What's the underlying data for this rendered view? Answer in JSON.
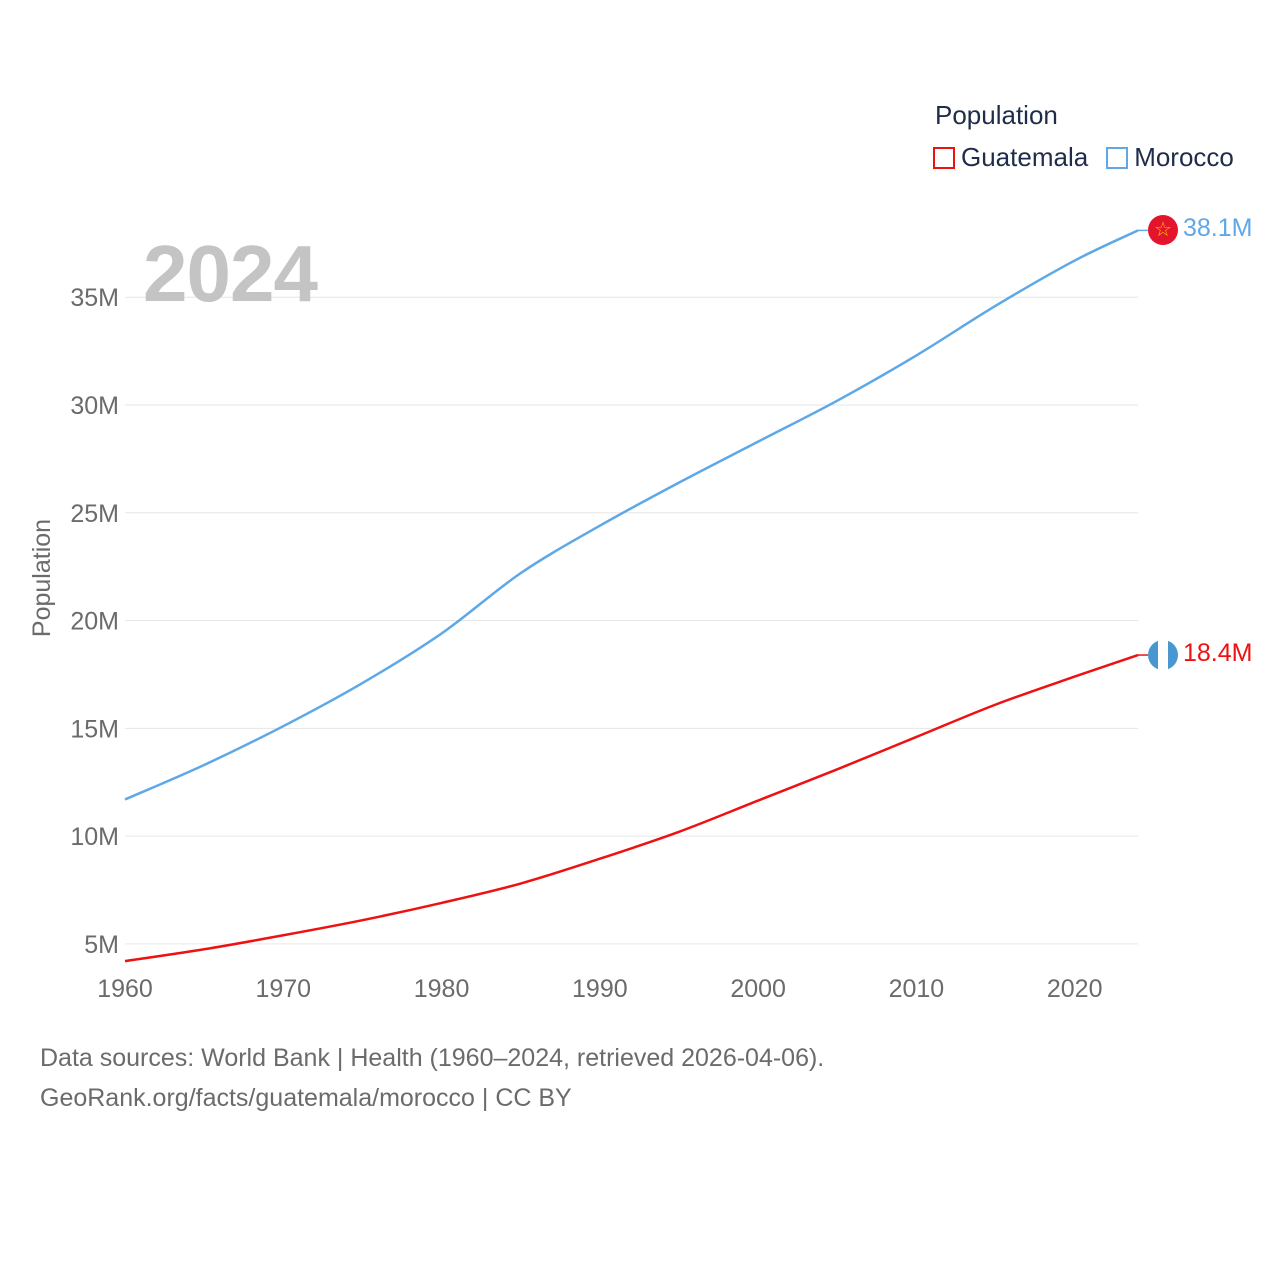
{
  "legend": {
    "title": "Population",
    "items": [
      {
        "name": "Guatemala",
        "color": "#ee1111"
      },
      {
        "name": "Morocco",
        "color": "#5ea8e8"
      }
    ]
  },
  "current_year": "2024",
  "end_labels": {
    "morocco": "38.1M",
    "guatemala": "18.4M"
  },
  "flags": {
    "morocco": "morocco-flag-icon",
    "guatemala": "guatemala-flag-icon"
  },
  "footer": {
    "line1": "Data sources: World Bank | Health (1960–2024, retrieved 2026-04-06).",
    "line2": "GeoRank.org/facts/guatemala/morocco | CC BY"
  },
  "chart_data": {
    "type": "line",
    "title": "",
    "xlabel": "",
    "ylabel": "Population",
    "xlim": [
      1960,
      2024
    ],
    "ylim": [
      3000000,
      39000000
    ],
    "x_ticks": [
      1960,
      1970,
      1980,
      1990,
      2000,
      2010,
      2020
    ],
    "x_tick_labels": [
      "1960",
      "1970",
      "1980",
      "1990",
      "2000",
      "2010",
      "2020"
    ],
    "y_ticks": [
      5000000,
      10000000,
      15000000,
      20000000,
      25000000,
      30000000,
      35000000
    ],
    "y_tick_labels": [
      "5M",
      "10M",
      "15M",
      "20M",
      "25M",
      "30M",
      "35M"
    ],
    "grid": true,
    "legend_position": "top-right",
    "series": [
      {
        "name": "Morocco",
        "color": "#5ea8e8",
        "x": [
          1960,
          1965,
          1970,
          1975,
          1980,
          1985,
          1990,
          1995,
          2000,
          2005,
          2010,
          2015,
          2020,
          2024
        ],
        "y": [
          11700000,
          13300000,
          15100000,
          17100000,
          19400000,
          22200000,
          24400000,
          26400000,
          28300000,
          30200000,
          32300000,
          34600000,
          36700000,
          38100000
        ]
      },
      {
        "name": "Guatemala",
        "color": "#ee1111",
        "x": [
          1960,
          1965,
          1970,
          1975,
          1980,
          1985,
          1990,
          1995,
          2000,
          2005,
          2010,
          2015,
          2020,
          2024
        ],
        "y": [
          4200000,
          4750000,
          5400000,
          6100000,
          6900000,
          7800000,
          8950000,
          10200000,
          11650000,
          13100000,
          14600000,
          16100000,
          17400000,
          18400000
        ]
      }
    ]
  }
}
